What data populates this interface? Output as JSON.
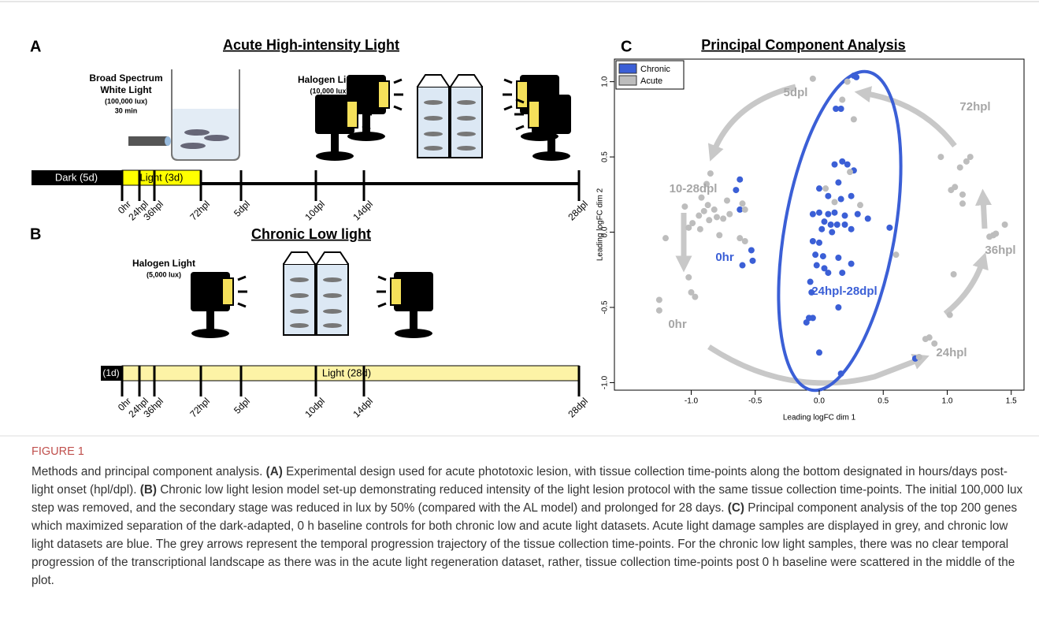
{
  "panel_a": {
    "label": "A",
    "title": "Acute High-intensity Light",
    "white_light": [
      "Broad Spectrum",
      "White Light",
      "(100,000 lux)",
      "30 min"
    ],
    "halogen": [
      "Halogen Light",
      "(10,000 lux)"
    ],
    "dark": "Dark (5d)",
    "light": "Light (3d)",
    "timepoints": [
      "0hr",
      "24hpl",
      "36hpl",
      "72hpl",
      "5dpl",
      "10dpl",
      "14dpl",
      "28dpl"
    ]
  },
  "panel_b": {
    "label": "B",
    "title": "Chronic Low light",
    "halogen": [
      "Halogen Light",
      "(5,000 lux)"
    ],
    "dark": "(1d)",
    "light": "Light (28d)",
    "timepoints": [
      "0hr",
      "24hpl",
      "36hpl",
      "72hpl",
      "5dpl",
      "10dpl",
      "14dpl",
      "28dpl"
    ]
  },
  "chart_data": {
    "type": "scatter",
    "label": "C",
    "title": "Principal Component Analysis",
    "x_label": "Leading logFC dim 1",
    "y_label": "Leading logFC dim 2",
    "xlim": [
      -1.6,
      1.6
    ],
    "ylim": [
      -1.05,
      1.15
    ],
    "xticks": [
      {
        "value": -1,
        "label": "-1.0"
      },
      {
        "value": -0.5,
        "label": "-0.5"
      },
      {
        "value": 0,
        "label": "0.0"
      },
      {
        "value": 0.5,
        "label": "0.5"
      },
      {
        "value": 1,
        "label": "1.0"
      },
      {
        "value": 1.5,
        "label": "1.5"
      }
    ],
    "yticks": [
      {
        "value": -1,
        "label": "-1.0"
      },
      {
        "value": -0.5,
        "label": "-0.5"
      },
      {
        "value": 0,
        "label": "0.0"
      },
      {
        "value": 0.5,
        "label": "0.5"
      },
      {
        "value": 1,
        "label": "1.0"
      }
    ],
    "legend": "top-left",
    "series": [
      {
        "name": "Chronic",
        "color": "#3b5fd6",
        "x": [
          0.27,
          0.29,
          0.13,
          0.17,
          0.18,
          0.22,
          0.12,
          0.27,
          0.0,
          0.15,
          0.07,
          0.17,
          0.25,
          -0.05,
          0.0,
          0.07,
          0.12,
          0.2,
          0.3,
          0.04,
          0.09,
          0.14,
          0.2,
          0.38,
          0.02,
          0.1,
          0.25,
          0.55,
          -0.05,
          0.0,
          -0.03,
          0.03,
          0.15,
          -0.02,
          0.04,
          0.07,
          0.18,
          0.25,
          -0.07,
          -0.06,
          -0.05,
          -0.08,
          -0.1,
          0.15,
          0.0,
          0.17,
          0.75,
          -0.62,
          -0.65,
          -0.62,
          -0.53,
          -0.52,
          -0.6
        ],
        "values": [
          1.04,
          1.03,
          0.82,
          0.82,
          0.47,
          0.45,
          0.45,
          0.41,
          0.29,
          0.33,
          0.24,
          0.22,
          0.24,
          0.12,
          0.13,
          0.12,
          0.13,
          0.11,
          0.12,
          0.07,
          0.05,
          0.05,
          0.05,
          0.09,
          0.02,
          0.0,
          0.02,
          0.03,
          -0.06,
          -0.07,
          -0.15,
          -0.16,
          -0.17,
          -0.22,
          -0.24,
          -0.27,
          -0.27,
          -0.21,
          -0.33,
          -0.4,
          -0.57,
          -0.57,
          -0.6,
          -0.5,
          -0.8,
          -0.94,
          -0.84,
          0.35,
          0.28,
          0.15,
          -0.12,
          -0.19,
          -0.22
        ]
      },
      {
        "name": "Acute",
        "color": "#bdbdbd",
        "x": [
          -0.05,
          0.22,
          0.27,
          0.18,
          -0.85,
          -0.88,
          -0.92,
          -0.87,
          -0.82,
          -0.9,
          -0.94,
          -0.99,
          -1.02,
          -0.93,
          -1.05,
          -0.72,
          -0.7,
          -0.75,
          -0.6,
          -0.58,
          -0.78,
          -0.62,
          -0.58,
          -0.8,
          -0.86,
          -1.2,
          -1.02,
          -1.0,
          -0.97,
          -1.25,
          -1.25,
          0.12,
          0.24,
          0.05,
          0.32,
          0.95,
          1.1,
          1.15,
          1.18,
          1.03,
          1.06,
          1.12,
          1.12,
          1.45,
          1.38,
          1.36,
          1.33,
          1.05,
          1.02,
          0.83,
          0.86,
          0.78,
          0.9,
          0.6
        ],
        "values": [
          1.02,
          1.0,
          0.75,
          0.88,
          0.39,
          0.32,
          0.23,
          0.18,
          0.15,
          0.14,
          0.11,
          0.06,
          0.03,
          0.02,
          0.17,
          0.21,
          0.12,
          0.09,
          0.19,
          0.15,
          -0.02,
          -0.04,
          -0.06,
          0.1,
          0.08,
          -0.04,
          -0.3,
          -0.4,
          -0.43,
          -0.45,
          -0.52,
          0.2,
          0.4,
          0.29,
          0.18,
          0.5,
          0.43,
          0.47,
          0.5,
          0.28,
          0.3,
          0.25,
          0.19,
          0.05,
          -0.01,
          -0.02,
          -0.03,
          -0.28,
          -0.55,
          -0.71,
          -0.7,
          -0.83,
          -0.74,
          -0.15
        ]
      }
    ],
    "annotations": [
      {
        "text": "5dpl",
        "color": "#a6a6a6"
      },
      {
        "text": "72hpl",
        "color": "#a6a6a6"
      },
      {
        "text": "10-28dpl",
        "color": "#a6a6a6"
      },
      {
        "text": "36hpl",
        "color": "#a6a6a6"
      },
      {
        "text": "0hr",
        "color": "#3b5fd6"
      },
      {
        "text": "24hpl-28dpl",
        "color": "#3b5fd6"
      },
      {
        "text": "0hr",
        "color": "#a6a6a6"
      },
      {
        "text": "24hpl",
        "color": "#a6a6a6"
      }
    ]
  },
  "caption": {
    "label": "FIGURE 1",
    "segments": [
      {
        "text": "Methods and principal component analysis. ",
        "bold": false
      },
      {
        "text": "(A)",
        "bold": true
      },
      {
        "text": " Experimental design used for acute phototoxic lesion, with tissue collection time-points along the bottom designated in hours/days post-light onset (hpl/dpl). ",
        "bold": false
      },
      {
        "text": "(B)",
        "bold": true
      },
      {
        "text": " Chronic low light lesion model set-up demonstrating reduced intensity of the light lesion protocol with the same tissue collection time-points. The initial 100,000 lux step was removed, and the secondary stage was reduced in lux by 50% (compared with the AL model) and prolonged for 28 days. ",
        "bold": false
      },
      {
        "text": "(C)",
        "bold": true
      },
      {
        "text": " Principal component analysis of the top 200 genes which maximized separation of the dark-adapted, 0 h baseline controls for both chronic low and acute light datasets. Acute light damage samples are displayed in grey, and chronic low light datasets are blue. The grey arrows represent the temporal progression trajectory of the tissue collection time-points. For the chronic low light samples, there was no clear temporal progression of the transcriptional landscape as there was in the acute light regeneration dataset, rather, tissue collection time-points post 0 h baseline were scattered in the middle of the plot.",
        "bold": false
      }
    ]
  }
}
